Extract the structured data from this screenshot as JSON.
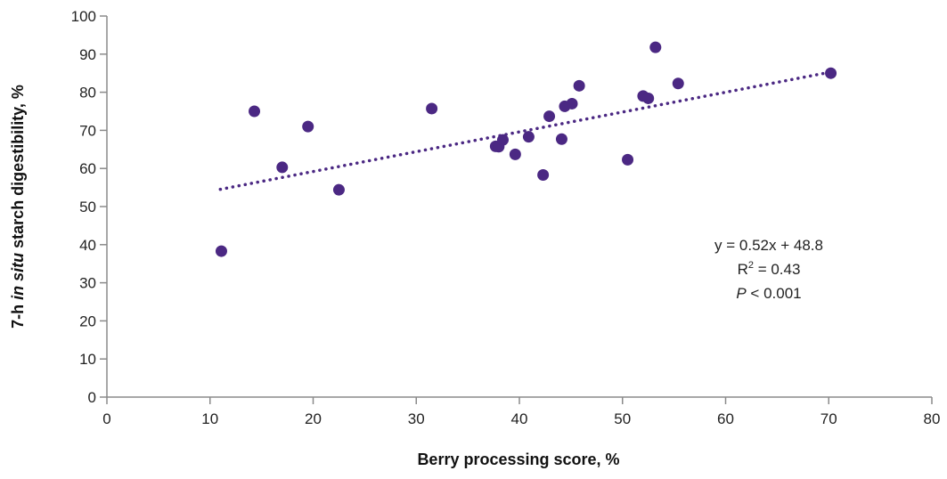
{
  "chart_data": {
    "type": "scatter",
    "xlabel": "Berry processing score, %",
    "ylabel_parts": [
      "7-h ",
      "in situ",
      " starch digestibility, %"
    ],
    "xlim": [
      0,
      80
    ],
    "ylim": [
      0,
      100
    ],
    "x_ticks": [
      0,
      10,
      20,
      30,
      40,
      50,
      60,
      70,
      80
    ],
    "y_ticks": [
      0,
      10,
      20,
      30,
      40,
      50,
      60,
      70,
      80,
      90,
      100
    ],
    "grid": false,
    "marker_color": "#4B2883",
    "trendline": {
      "slope": 0.52,
      "intercept": 48.8,
      "x_range": [
        11,
        70
      ],
      "style": "dotted"
    },
    "annotation": {
      "equation": "y = 0.52x + 48.8",
      "r2_prefix": "R",
      "r2_sup": "2",
      "r2_value": " = 0.43",
      "p_symbol": "P",
      "p_value": " < 0.001"
    },
    "points": [
      {
        "x": 11.1,
        "y": 38.3
      },
      {
        "x": 14.3,
        "y": 75.0
      },
      {
        "x": 17.0,
        "y": 60.3
      },
      {
        "x": 19.5,
        "y": 71.0
      },
      {
        "x": 22.5,
        "y": 54.4
      },
      {
        "x": 31.5,
        "y": 75.7
      },
      {
        "x": 37.7,
        "y": 65.8
      },
      {
        "x": 38.0,
        "y": 65.7
      },
      {
        "x": 38.4,
        "y": 67.5
      },
      {
        "x": 39.6,
        "y": 63.7
      },
      {
        "x": 40.9,
        "y": 68.3
      },
      {
        "x": 42.3,
        "y": 58.3
      },
      {
        "x": 42.9,
        "y": 73.7
      },
      {
        "x": 44.1,
        "y": 67.7
      },
      {
        "x": 44.4,
        "y": 76.3
      },
      {
        "x": 45.1,
        "y": 77.0
      },
      {
        "x": 45.8,
        "y": 81.7
      },
      {
        "x": 50.5,
        "y": 62.3
      },
      {
        "x": 52.0,
        "y": 79.0
      },
      {
        "x": 52.5,
        "y": 78.4
      },
      {
        "x": 53.2,
        "y": 91.8
      },
      {
        "x": 55.4,
        "y": 82.3
      },
      {
        "x": 70.2,
        "y": 85.0
      }
    ]
  }
}
